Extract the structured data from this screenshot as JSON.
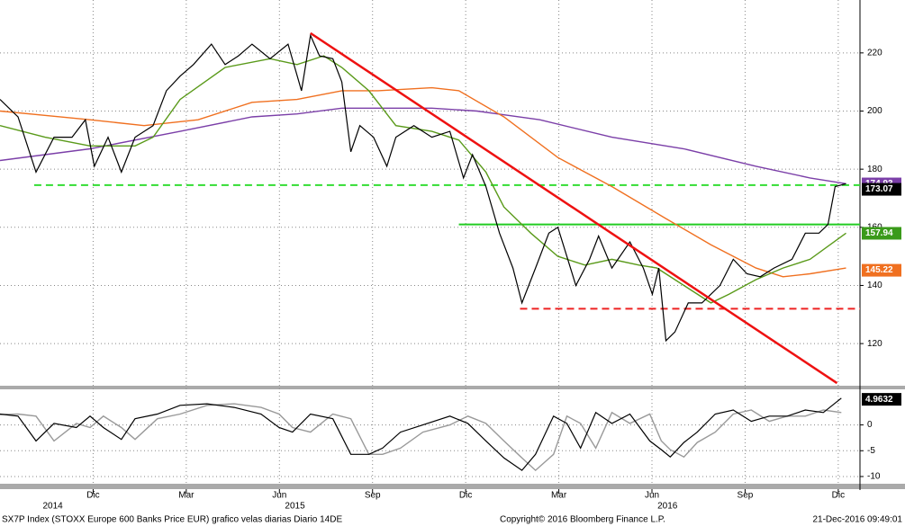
{
  "chart_data": [
    {
      "type": "line",
      "xlim": [
        0,
        27.7
      ],
      "ylim": [
        105.5,
        238.2
      ],
      "yticks": [
        120,
        140,
        160,
        180,
        200,
        220
      ],
      "grid": true,
      "xticks": [
        {
          "value": 3,
          "label": "Dic"
        },
        {
          "value": 6,
          "label": "Mar"
        },
        {
          "value": 9,
          "label": "Jun"
        },
        {
          "value": 12,
          "label": "Sep"
        },
        {
          "value": 15,
          "label": "Dic"
        },
        {
          "value": 18,
          "label": "Mar"
        },
        {
          "value": 21,
          "label": "Jun"
        },
        {
          "value": 24,
          "label": "Sep"
        },
        {
          "value": 27,
          "label": "Dic"
        }
      ],
      "years": [
        {
          "value": 1.7,
          "label": "2014"
        },
        {
          "value": 9.5,
          "label": "2015"
        },
        {
          "value": 21.5,
          "label": "2016"
        }
      ],
      "series": [
        {
          "color": "#7b3fa8",
          "x": [
            0,
            2.9,
            5.8,
            8.12,
            9.57,
            11.01,
            13.91,
            15.36,
            17.39,
            19.71,
            22.03,
            24.35,
            26.09,
            27.25
          ],
          "values": [
            183,
            187,
            193,
            198,
            199,
            201,
            201,
            200,
            197,
            191,
            187,
            181,
            177,
            175
          ]
        },
        {
          "color": "#f07020",
          "x": [
            0,
            2.9,
            4.64,
            6.38,
            8.12,
            9.57,
            11.01,
            12.17,
            13.91,
            14.78,
            16.23,
            17.97,
            19.71,
            21.45,
            22.9,
            24.35,
            25.22,
            26.09,
            27.25
          ],
          "values": [
            200,
            197,
            195,
            197,
            203,
            204,
            207,
            207,
            208,
            207,
            198,
            184,
            174,
            163,
            154,
            146,
            143,
            144,
            146
          ]
        },
        {
          "color": "#5a9a1a",
          "x": [
            0,
            1.45,
            2.9,
            4.35,
            4.93,
            5.8,
            7.25,
            8.7,
            9.57,
            10.43,
            11.01,
            11.88,
            12.75,
            13.91,
            14.78,
            15.65,
            16.23,
            17.1,
            17.97,
            18.84,
            19.71,
            20.58,
            21.16,
            22.03,
            22.9,
            23.48,
            24.35,
            25.22,
            26.09,
            27.25
          ],
          "values": [
            195,
            191,
            188,
            188,
            191,
            204,
            215,
            218,
            216,
            219,
            215,
            207,
            195,
            193,
            190,
            179,
            167,
            158,
            150,
            147,
            149,
            147,
            146,
            140,
            134,
            137,
            142,
            146,
            149,
            158
          ]
        },
        {
          "color": "#000000",
          "x": [
            0,
            0.58,
            1.16,
            1.74,
            2.32,
            2.75,
            3.04,
            3.48,
            3.91,
            4.35,
            4.93,
            5.36,
            5.8,
            6.23,
            6.81,
            7.25,
            7.68,
            8.12,
            8.7,
            9.28,
            9.71,
            10.0,
            10.29,
            10.72,
            11.01,
            11.3,
            11.59,
            12.03,
            12.46,
            12.75,
            13.33,
            13.91,
            14.49,
            14.93,
            15.22,
            15.65,
            16.09,
            16.52,
            16.81,
            17.25,
            17.68,
            17.97,
            18.55,
            18.99,
            19.28,
            19.71,
            20.29,
            20.72,
            21.01,
            21.22,
            21.45,
            21.74,
            22.17,
            22.61,
            23.19,
            23.62,
            24.06,
            24.49,
            24.93,
            25.51,
            25.94,
            26.38,
            26.67,
            26.9,
            27.25
          ],
          "values": [
            204,
            198,
            179,
            191,
            191,
            197,
            181,
            191,
            179,
            191,
            195,
            207,
            212,
            216,
            223,
            216,
            219,
            223,
            218,
            223,
            207,
            226,
            219,
            218,
            210,
            186,
            195,
            191,
            181,
            191,
            195,
            191,
            193,
            177,
            185,
            174,
            158,
            146,
            134,
            146,
            158,
            160,
            140,
            149,
            157,
            146,
            155,
            146,
            137,
            146,
            121,
            124,
            134,
            134,
            140,
            149,
            144,
            143,
            146,
            149,
            158,
            158,
            161,
            174,
            175
          ]
        }
      ],
      "levels": [
        {
          "value": 174.5,
          "x": [
            1.1,
            27.7
          ],
          "color": "#33dd33",
          "dashed": true
        },
        {
          "value": 161,
          "x": [
            14.78,
            27.7
          ],
          "color": "#22cc22",
          "dashed": false
        },
        {
          "value": 132,
          "x": [
            16.75,
            27.7
          ],
          "color": "#ee2222",
          "dashed": true
        }
      ],
      "trendline": {
        "x": [
          10.0,
          26.96
        ],
        "values": [
          226.8,
          106.4
        ],
        "color": "#ee1111"
      },
      "price_labels": [
        {
          "value": 174.93,
          "label": "174.93",
          "color": "#7b3fa8"
        },
        {
          "value": 173.07,
          "label": "173.07",
          "color": "#000000"
        },
        {
          "value": 157.94,
          "label": "157.94",
          "color": "#3a9a1a"
        },
        {
          "value": 145.22,
          "label": "145.22",
          "color": "#f07020"
        }
      ]
    },
    {
      "type": "line",
      "xlim": [
        0,
        27.7
      ],
      "ylim": [
        -11.4,
        6.9
      ],
      "yticks": [
        -10,
        -5,
        0
      ],
      "grid": true,
      "series": [
        {
          "color": "#999999",
          "x": [
            0,
            0.58,
            1.16,
            1.74,
            2.46,
            2.9,
            3.33,
            3.91,
            4.35,
            5.07,
            5.8,
            6.67,
            7.54,
            8.41,
            8.99,
            9.42,
            10.0,
            10.72,
            11.3,
            11.88,
            12.32,
            12.9,
            13.62,
            14.49,
            15.07,
            15.65,
            16.23,
            16.81,
            17.25,
            17.83,
            18.26,
            18.7,
            19.19,
            19.71,
            20.29,
            20.93,
            21.3,
            21.59,
            22.03,
            22.46,
            23.04,
            23.62,
            24.2,
            24.78,
            25.36,
            25.94,
            26.52,
            27.1
          ],
          "values": [
            2.0,
            2.1,
            1.7,
            -3.1,
            0.3,
            -0.5,
            1.7,
            -0.5,
            -2.8,
            1.2,
            2.1,
            3.8,
            4.1,
            3.4,
            2.1,
            -0.5,
            -1.4,
            2.1,
            1.2,
            -5.7,
            -5.7,
            -4.5,
            -1.4,
            0,
            1.7,
            0.3,
            -3.1,
            -6.4,
            -8.8,
            -5.7,
            1.7,
            0.3,
            -4.5,
            2.4,
            0.3,
            2.1,
            -3.1,
            -4.8,
            -6.2,
            -3.4,
            -1.4,
            2.1,
            2.9,
            0.7,
            1.7,
            1.7,
            2.9,
            2.4
          ]
        },
        {
          "color": "#000000",
          "x": [
            0,
            0.58,
            1.16,
            1.74,
            2.46,
            2.9,
            3.33,
            3.91,
            4.35,
            5.07,
            5.8,
            6.67,
            7.54,
            8.41,
            8.99,
            9.42,
            10.0,
            10.72,
            11.3,
            11.88,
            12.32,
            12.9,
            13.62,
            14.49,
            15.07,
            15.65,
            16.23,
            16.81,
            17.25,
            17.83,
            18.26,
            18.7,
            19.19,
            19.71,
            20.29,
            20.93,
            21.3,
            21.59,
            22.03,
            22.46,
            23.04,
            23.62,
            24.2,
            24.78,
            25.36,
            25.94,
            26.52,
            27.1
          ],
          "values": [
            2.1,
            1.7,
            -3.1,
            0.3,
            -0.5,
            1.7,
            -0.5,
            -2.8,
            1.2,
            2.1,
            3.8,
            4.1,
            3.4,
            2.1,
            -0.5,
            -1.4,
            2.1,
            1.2,
            -5.7,
            -5.7,
            -4.5,
            -1.4,
            0,
            1.7,
            0.3,
            -3.1,
            -6.4,
            -8.8,
            -5.7,
            1.7,
            0.3,
            -4.5,
            2.4,
            0.3,
            2.1,
            -3.1,
            -4.8,
            -6.2,
            -3.4,
            -1.4,
            2.1,
            2.9,
            0.7,
            1.7,
            1.7,
            2.9,
            2.4,
            5.2
          ]
        }
      ],
      "price_labels": [
        {
          "value": 4.9632,
          "label": "4.9632",
          "color": "#000000"
        }
      ]
    }
  ],
  "footer": {
    "left": "SX7P Index (STOXX Europe 600 Banks Price EUR) grafico velas diarias  Diario 14DE",
    "center": "Copyright© 2016 Bloomberg Finance L.P.",
    "right": "21-Dec-2016 09:49:01"
  }
}
